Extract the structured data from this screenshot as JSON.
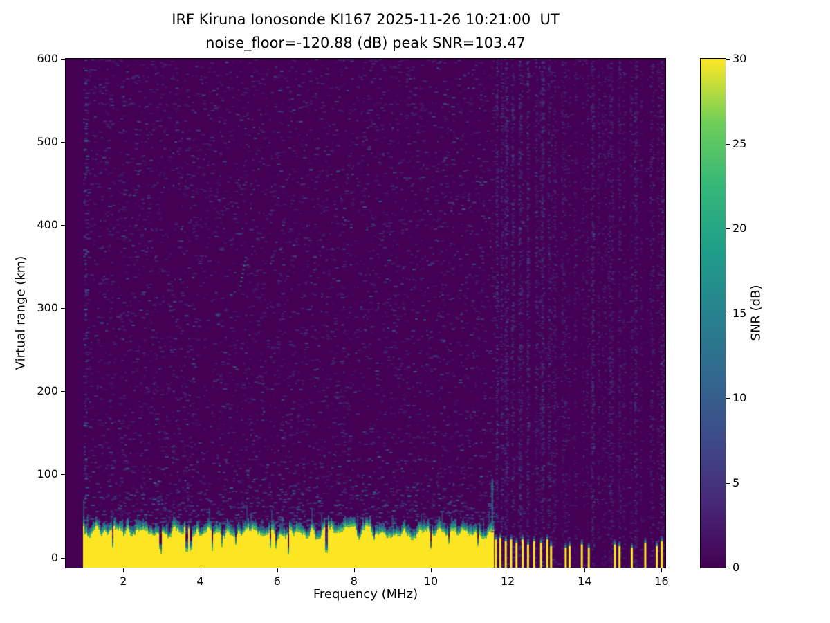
{
  "figure": {
    "background": "#ffffff",
    "text_color": "#000000"
  },
  "chart_data": {
    "type": "heatmap",
    "title": "IRF Kiruna Ionosonde KI167 2025-11-26 10:21:00  UT",
    "subtitle": "noise_floor=-120.88 (dB) peak SNR=103.47",
    "station": "IRF Kiruna Ionosonde KI167",
    "timestamp_ut": "2025-11-26 10:21:00",
    "noise_floor_db": -120.88,
    "peak_snr_db": 103.47,
    "xlabel": "Frequency (MHz)",
    "ylabel": "Virtual range (km)",
    "colorbar_label": "SNR (dB)",
    "xlim": [
      0.5,
      16.1
    ],
    "ylim": [
      -12,
      600
    ],
    "clim": [
      0,
      30
    ],
    "x_ticks": [
      2,
      4,
      6,
      8,
      10,
      12,
      14,
      16
    ],
    "y_ticks": [
      0,
      100,
      200,
      300,
      400,
      500,
      600
    ],
    "colorbar_ticks": [
      0,
      5,
      10,
      15,
      20,
      25,
      30
    ],
    "colormap": "viridis",
    "colormap_anchors": [
      [
        68,
        1,
        84
      ],
      [
        72,
        40,
        120
      ],
      [
        62,
        74,
        137
      ],
      [
        49,
        104,
        142
      ],
      [
        38,
        130,
        142
      ],
      [
        31,
        158,
        137
      ],
      [
        53,
        183,
        121
      ],
      [
        110,
        206,
        88
      ],
      [
        253,
        231,
        37
      ]
    ],
    "ground_echo": {
      "freq_start_mhz": 0.95,
      "freq_end_mhz": 11.62,
      "band_top_km_mean": 30,
      "band_top_km_jitter": 8,
      "snr_db": 30,
      "notches_mhz": [
        2.95,
        3.63,
        3.73,
        4.3,
        6.28,
        7.27
      ],
      "end_spike": {
        "f_mhz": 11.58,
        "top_km": 95
      }
    },
    "rfi_bursts": [
      {
        "f": 11.66,
        "h": 22
      },
      {
        "f": 11.78,
        "h": 24
      },
      {
        "f": 11.92,
        "h": 20
      },
      {
        "f": 12.06,
        "h": 22
      },
      {
        "f": 12.2,
        "h": 18
      },
      {
        "f": 12.36,
        "h": 22
      },
      {
        "f": 12.5,
        "h": 16
      },
      {
        "f": 12.66,
        "h": 20
      },
      {
        "f": 12.84,
        "h": 18
      },
      {
        "f": 13.0,
        "h": 22
      },
      {
        "f": 13.1,
        "h": 14
      },
      {
        "f": 13.48,
        "h": 12
      },
      {
        "f": 13.58,
        "h": 14
      },
      {
        "f": 13.9,
        "h": 16
      },
      {
        "f": 14.08,
        "h": 12
      },
      {
        "f": 14.76,
        "h": 16
      },
      {
        "f": 14.88,
        "h": 14
      },
      {
        "f": 15.2,
        "h": 12
      },
      {
        "f": 15.55,
        "h": 18
      },
      {
        "f": 15.85,
        "h": 14
      },
      {
        "f": 15.98,
        "h": 20
      }
    ],
    "rfi_columns": {
      "f_start_mhz": 11.62,
      "f_end_mhz": 16.05,
      "count": 42,
      "intensity_min": 0.08,
      "intensity_max": 0.3,
      "strong_mhz": [
        11.7,
        11.82,
        11.95,
        12.1,
        12.3,
        12.5,
        12.72,
        12.9,
        13.05,
        14.2,
        15.3,
        15.98
      ]
    },
    "noise": {
      "speckle_count": 5200,
      "upper_extra": 900,
      "right_extra": 600,
      "snr_min_db": 2,
      "snr_max_db": 12,
      "seed": 20251126
    },
    "echo_feature": {
      "f_mhz": [
        5.02,
        5.16
      ],
      "range_km": [
        328,
        362
      ]
    }
  }
}
